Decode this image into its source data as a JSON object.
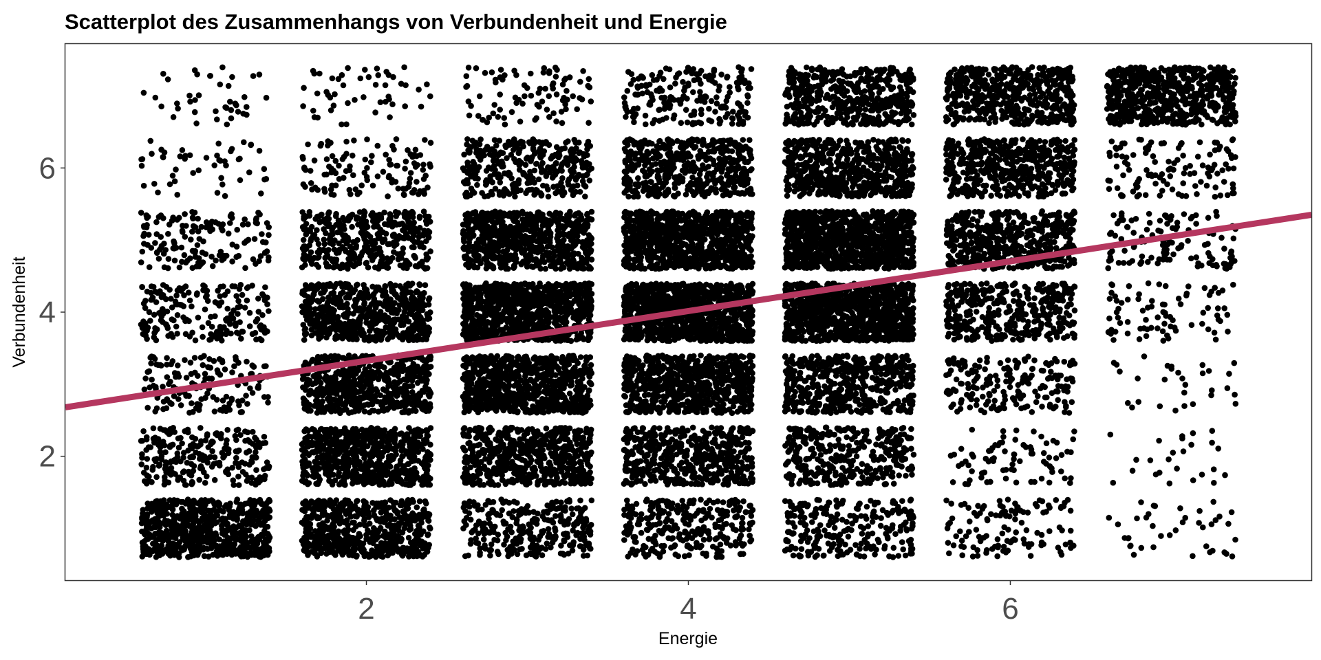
{
  "chart_data": {
    "type": "scatter",
    "title": "Scatterplot des Zusammenhangs von Verbundenheit und Energie",
    "xlabel": "Energie",
    "ylabel": "Verbundenheit",
    "xlim": [
      0.13,
      7.87
    ],
    "ylim": [
      0.28,
      7.72
    ],
    "x_ticks": [
      2,
      4,
      6
    ],
    "y_ticks": [
      2,
      4,
      6
    ],
    "jitter": 0.4,
    "point_color": "#000000",
    "grid": false,
    "legend": "none",
    "density_grid": {
      "description": "approximate point counts per (Energie, Verbundenheit) integer cell; rows y=7..1, columns x=1..7",
      "x": [
        1,
        2,
        3,
        4,
        5,
        6,
        7
      ],
      "y": [
        7,
        6,
        5,
        4,
        3,
        2,
        1
      ],
      "counts": [
        [
          40,
          50,
          90,
          200,
          500,
          500,
          600
        ],
        [
          50,
          120,
          350,
          500,
          600,
          500,
          120
        ],
        [
          150,
          400,
          700,
          900,
          1100,
          500,
          120
        ],
        [
          200,
          600,
          900,
          1100,
          1000,
          400,
          80
        ],
        [
          150,
          600,
          800,
          700,
          500,
          200,
          30
        ],
        [
          250,
          700,
          600,
          500,
          350,
          80,
          25
        ],
        [
          700,
          600,
          300,
          300,
          250,
          120,
          40
        ]
      ]
    },
    "regression_line": {
      "color": "#b5375f",
      "points": [
        [
          0.13,
          2.68
        ],
        [
          7.87,
          5.35
        ]
      ]
    }
  }
}
